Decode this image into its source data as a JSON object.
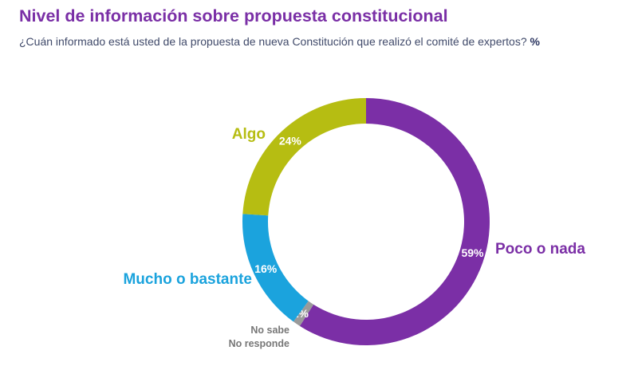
{
  "chart_data": {
    "type": "pie",
    "title": "Nivel de información sobre propuesta constitucional",
    "subtitle": "¿Cuán informado está usted de la propuesta de nueva Constitución que realizó el comité de expertos?",
    "unit": "%",
    "slices": [
      {
        "name": "Poco o nada",
        "value": 59,
        "label": "59%",
        "color": "#7b2fa6"
      },
      {
        "name": "No sabe No responde",
        "name_lines": [
          "No sabe",
          "No responde"
        ],
        "value": 1,
        "label": "1%",
        "color": "#9a9a9a"
      },
      {
        "name": "Mucho o bastante",
        "value": 16,
        "label": "16%",
        "color": "#1ba3dd"
      },
      {
        "name": "Algo",
        "value": 24,
        "label": "24%",
        "color": "#b6bd12"
      }
    ]
  }
}
